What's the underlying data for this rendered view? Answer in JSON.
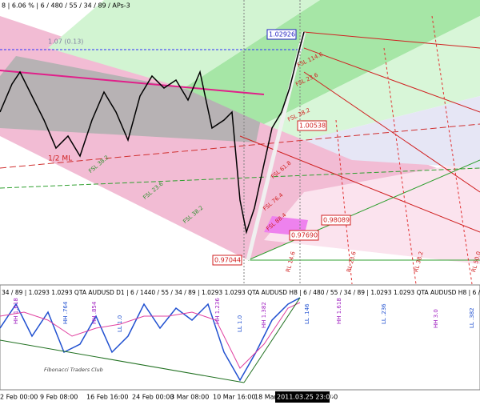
{
  "header": "8 | 6.06 % | 6 / 480 / 55 / 34 / 89 / APs-3",
  "price_labels": [
    "1.02926",
    "1.00538",
    "0.98089",
    "0.97690",
    "0.97044"
  ],
  "chart_notes": [
    "1.07 (0.13)",
    "1/2 ML"
  ],
  "fan_labels": [
    "FSL 114.6",
    "FSL 23.6",
    "FSL 38.2",
    "FSL 61.8",
    "FSL 76.4",
    "FSL 88.4",
    "FSL 23.6",
    "FSL 38.2",
    "FSL 38.2"
  ],
  "grid_labels": [
    "RL 14.6",
    "RL 23.6",
    "RL 38.2",
    "RL 50.0"
  ],
  "indicator_header": "34 / 89 | 1.0293 1.0293  QTA AUDUSD D1 | 6 / 1440 / 55 / 34 / 89 | 1.0293 1.0293  QTA AUDUSD H8 | 6 / 480 / 55 / 34 / 89 | 1.0293 1.0293  QTA AUDUSD H8 | 6 / 480",
  "indicator_labels": [
    "HH 1.618",
    "HH .764",
    "HH .854",
    "LL 1.0",
    "HH 1.236",
    "LL 1.0",
    "HH 1.382",
    "LL .146",
    "HH 1.618",
    "LL .236",
    "HH 3.0",
    "LL .382"
  ],
  "watermark": "Fibonacci Traders Club",
  "time_axis": [
    "2 Feb 00:00",
    "9 Feb 08:00",
    "16 Feb 16:00",
    "24 Feb 00:00",
    "3 Mar 08:00",
    "10 Mar 16:00",
    "18 Mar",
    "00"
  ],
  "cursor_time": "2011.03.25 23:02"
}
